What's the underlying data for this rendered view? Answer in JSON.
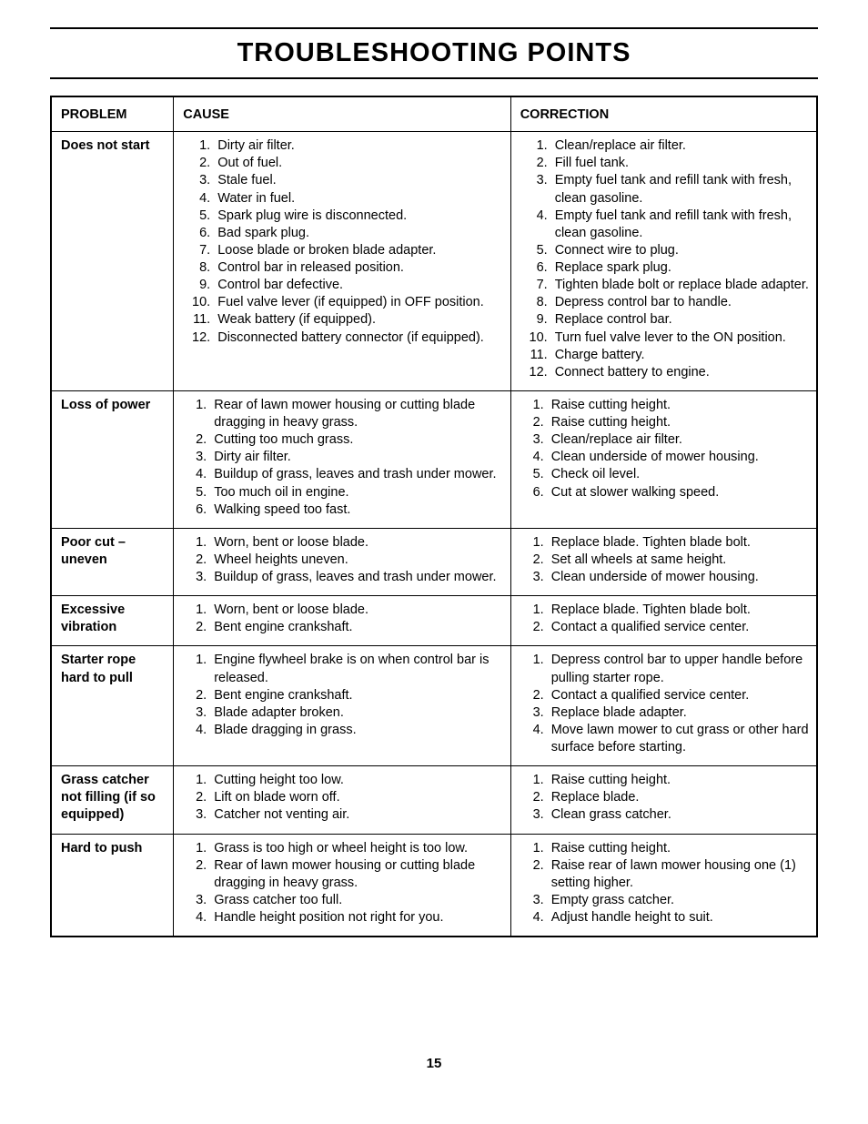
{
  "page": {
    "title": "TROUBLESHOOTING POINTS",
    "page_number": "15",
    "col_problem": "PROBLEM",
    "col_cause": "CAUSE",
    "col_correction": "CORRECTION"
  },
  "rows": [
    {
      "problem": "Does not start",
      "causes": [
        "Dirty air filter.",
        "Out of fuel.",
        "Stale fuel.",
        "Water in fuel.",
        "Spark plug wire is disconnected.",
        "Bad spark plug.",
        "Loose blade or broken blade adapter.",
        "Control bar in released position.",
        "Control bar defective.",
        "Fuel valve lever (if equipped) in OFF position.",
        "Weak battery (if equipped).",
        "Disconnected battery connector (if equipped)."
      ],
      "corrections": [
        "Clean/replace air filter.",
        "Fill fuel tank.",
        "Empty fuel tank and refill tank with fresh, clean gasoline.",
        "Empty fuel tank and refill tank with fresh, clean gasoline.",
        "Connect wire to plug.",
        "Replace spark plug.",
        "Tighten blade bolt or replace blade adapter.",
        "Depress control bar to handle.",
        "Replace control bar.",
        "Turn fuel valve lever to the ON position.",
        "Charge battery.",
        "Connect battery to engine."
      ]
    },
    {
      "problem": "Loss of power",
      "causes": [
        "Rear of lawn mower housing or cutting blade dragging in heavy grass.",
        "Cutting too much grass.",
        "Dirty air filter.",
        "Buildup of grass, leaves and trash under mower.",
        "Too much oil in engine.",
        "Walking speed too fast."
      ],
      "corrections": [
        "Raise cutting height.",
        "Raise cutting height.",
        "Clean/replace air filter.",
        "Clean underside of mower housing.",
        "Check oil level.",
        "Cut at slower walking speed."
      ]
    },
    {
      "problem": "Poor cut – uneven",
      "causes": [
        "Worn, bent or loose blade.",
        "Wheel heights uneven.",
        "Buildup of grass, leaves and trash under mower."
      ],
      "corrections": [
        "Replace blade. Tighten blade bolt.",
        "Set all wheels at same height.",
        "Clean underside of mower housing."
      ]
    },
    {
      "problem": "Excessive vibration",
      "causes": [
        "Worn, bent or loose blade.",
        "Bent engine crankshaft."
      ],
      "corrections": [
        "Replace blade. Tighten blade bolt.",
        "Contact a qualified service center."
      ]
    },
    {
      "problem": "Starter rope hard to pull",
      "causes": [
        "Engine flywheel brake is on when control bar is released.",
        "Bent engine crankshaft.",
        "Blade adapter broken.",
        "Blade dragging in grass."
      ],
      "corrections": [
        "Depress control bar to upper handle before pulling starter rope.",
        "Contact a qualified service center.",
        "Replace blade adapter.",
        "Move lawn mower to cut grass or other hard surface before starting."
      ]
    },
    {
      "problem": "Grass catcher not filling (if so equipped)",
      "causes": [
        "Cutting height too low.",
        "Lift on blade worn off.",
        "Catcher not venting air."
      ],
      "corrections": [
        "Raise cutting height.",
        "Replace blade.",
        "Clean grass catcher."
      ]
    },
    {
      "problem": "Hard to push",
      "causes": [
        "Grass is too high or wheel height is too low.",
        "Rear of lawn mower housing or cutting blade dragging in heavy grass.",
        "Grass catcher too full.",
        "Handle height position not right for you."
      ],
      "corrections": [
        "Raise cutting height.",
        "Raise rear of lawn mower housing one (1) setting higher.",
        "Empty grass catcher.",
        "Adjust handle height to suit."
      ]
    }
  ]
}
